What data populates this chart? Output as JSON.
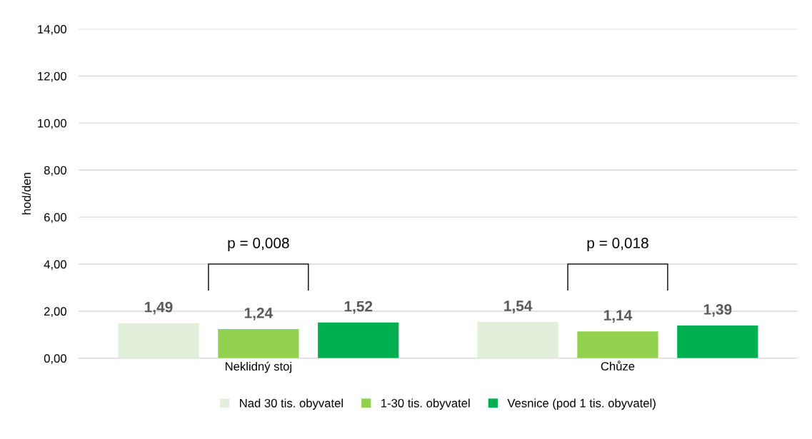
{
  "chart_data": {
    "type": "bar",
    "ylabel": "hod/den",
    "categories": [
      "Neklidný stoj",
      "Chůze"
    ],
    "series": [
      {
        "name": "Nad 30 tis. obyvatel",
        "color": "#e2efda",
        "values": [
          1.49,
          1.54
        ],
        "value_labels": [
          "1,49",
          "1,54"
        ]
      },
      {
        "name": "1-30 tis. obyvatel",
        "color": "#92d050",
        "values": [
          1.24,
          1.14
        ],
        "value_labels": [
          "1,24",
          "1,14"
        ]
      },
      {
        "name": "Vesnice (pod 1 tis. obyvatel)",
        "color": "#00b050",
        "values": [
          1.52,
          1.39
        ],
        "value_labels": [
          "1,52",
          "1,39"
        ]
      }
    ],
    "ylim": [
      0,
      14
    ],
    "yticks": [
      {
        "value": 0,
        "label": "0,00"
      },
      {
        "value": 2,
        "label": "2,00"
      },
      {
        "value": 4,
        "label": "4,00"
      },
      {
        "value": 6,
        "label": "6,00"
      },
      {
        "value": 8,
        "label": "8,00"
      },
      {
        "value": 10,
        "label": "10,00"
      },
      {
        "value": 12,
        "label": "12,00"
      },
      {
        "value": 14,
        "label": "14,00"
      }
    ],
    "annotations": [
      "p = 0,008",
      "p = 0,018"
    ],
    "grid": "y",
    "legend": "bottom"
  }
}
